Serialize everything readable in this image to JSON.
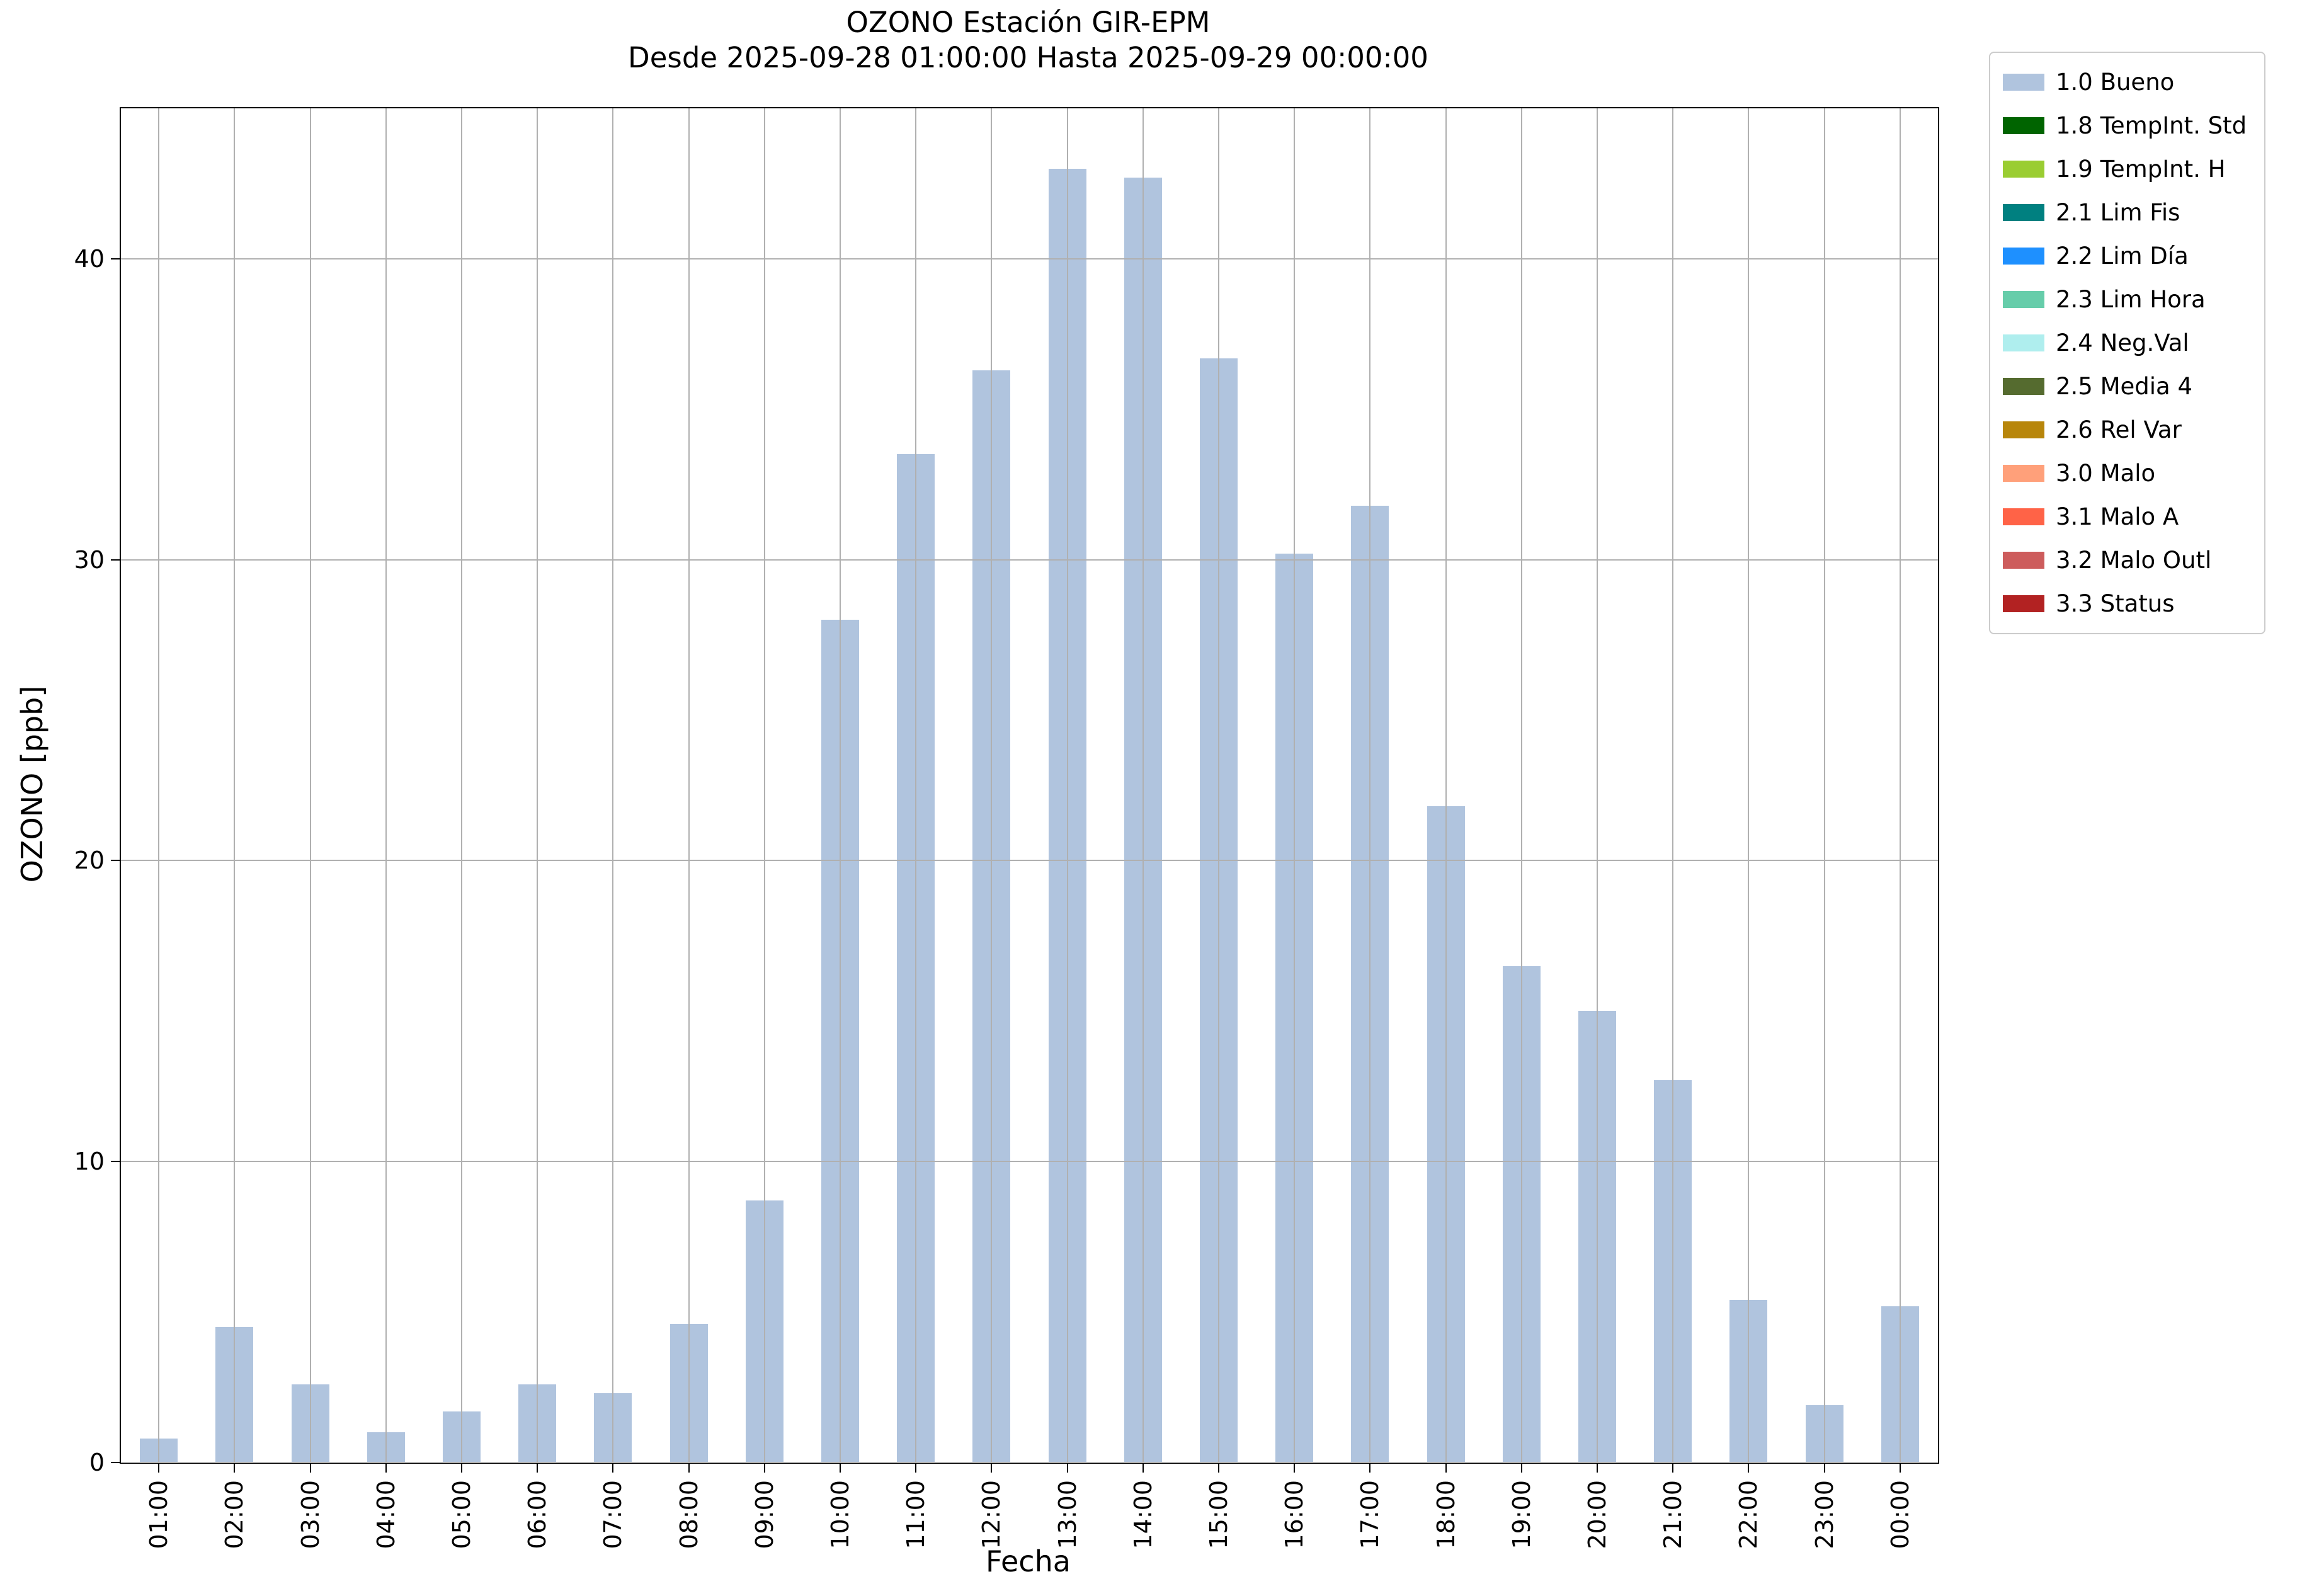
{
  "chart_data": {
    "type": "bar",
    "title": "OZONO Estación GIR-EPM",
    "subtitle": "Desde 2025-09-28 01:00:00 Hasta 2025-09-29 00:00:00",
    "xlabel": "Fecha",
    "ylabel": "OZONO [ppb]",
    "ylim": [
      0,
      45
    ],
    "yticks": [
      0,
      10,
      20,
      30,
      40
    ],
    "grid": true,
    "grid_color": "#b0b0b0",
    "bar_color": "#b0c4de",
    "legend_position": "outside-right",
    "categories": [
      "01:00",
      "02:00",
      "03:00",
      "04:00",
      "05:00",
      "06:00",
      "07:00",
      "08:00",
      "09:00",
      "10:00",
      "11:00",
      "12:00",
      "13:00",
      "14:00",
      "15:00",
      "16:00",
      "17:00",
      "18:00",
      "19:00",
      "20:00",
      "21:00",
      "22:00",
      "23:00",
      "00:00"
    ],
    "values": [
      0.8,
      4.5,
      2.6,
      1.0,
      1.7,
      2.6,
      2.3,
      4.6,
      8.7,
      28.0,
      33.5,
      36.3,
      43.0,
      42.7,
      36.7,
      30.2,
      31.8,
      21.8,
      16.5,
      15.0,
      12.7,
      5.4,
      1.9,
      5.2
    ],
    "legend": [
      {
        "label": "1.0 Bueno",
        "color": "#b0c4de"
      },
      {
        "label": "1.8 TempInt. Std",
        "color": "#006400"
      },
      {
        "label": "1.9 TempInt. H",
        "color": "#9acd32"
      },
      {
        "label": "2.1 Lim Fis",
        "color": "#008080"
      },
      {
        "label": "2.2 Lim Día",
        "color": "#1e90ff"
      },
      {
        "label": "2.3 Lim Hora",
        "color": "#66cdaa"
      },
      {
        "label": "2.4 Neg.Val",
        "color": "#afeeee"
      },
      {
        "label": "2.5 Media 4",
        "color": "#556b2f"
      },
      {
        "label": "2.6 Rel Var",
        "color": "#b8860b"
      },
      {
        "label": "3.0 Malo",
        "color": "#ffa07a"
      },
      {
        "label": "3.1 Malo A",
        "color": "#ff6347"
      },
      {
        "label": "3.2 Malo Outl",
        "color": "#cd5c5c"
      },
      {
        "label": "3.3 Status",
        "color": "#b22222"
      }
    ]
  }
}
